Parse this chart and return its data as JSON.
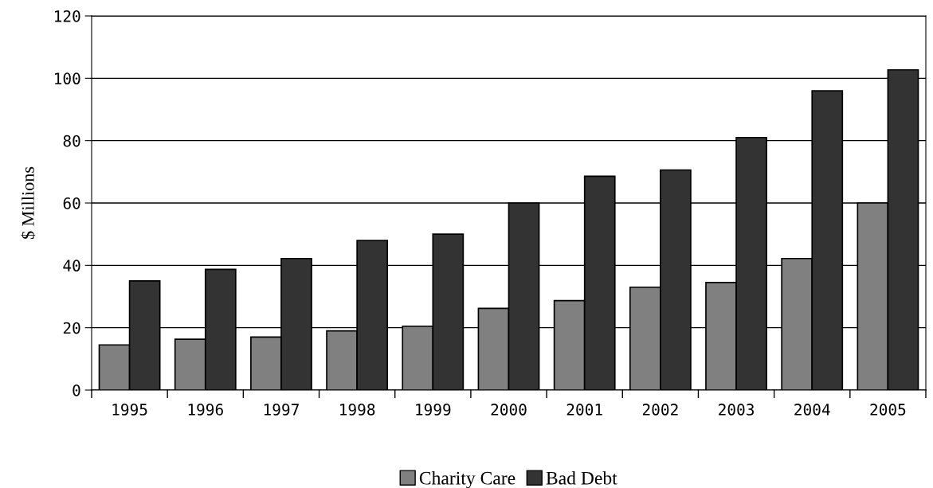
{
  "chart_data": {
    "type": "bar",
    "ylabel": "$ Millions",
    "categories": [
      "1995",
      "1996",
      "1997",
      "1998",
      "1999",
      "2000",
      "2001",
      "2002",
      "2003",
      "2004",
      "2005"
    ],
    "series": [
      {
        "name": "Charity Care",
        "color": "#808080",
        "values": [
          14.5,
          16.3,
          17,
          19,
          20.5,
          26.2,
          28.7,
          33,
          34.5,
          42.2,
          60
        ]
      },
      {
        "name": "Bad Debt",
        "color": "#333333",
        "values": [
          35,
          38.7,
          42.2,
          48,
          50,
          60,
          68.6,
          70.6,
          81,
          96,
          102.7
        ]
      }
    ],
    "ylim": [
      0,
      120
    ],
    "yticks": [
      0,
      20,
      40,
      60,
      80,
      100,
      120
    ],
    "grid": "y",
    "legend": "bottom"
  }
}
